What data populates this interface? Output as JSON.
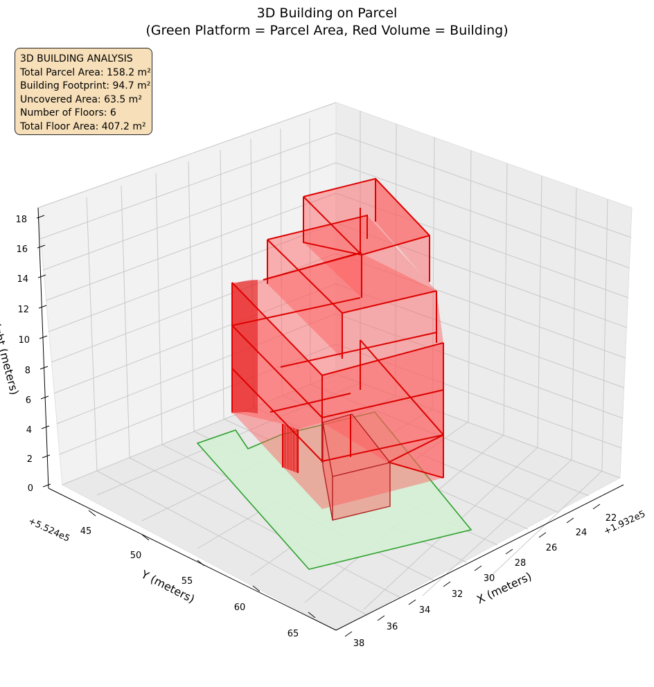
{
  "chart_data": {
    "type": "3d-polygons",
    "title_lines": [
      "3D Building on Parcel",
      "(Green Platform = Parcel Area, Red Volume = Building)"
    ],
    "axes": {
      "x": {
        "label": "X (meters)",
        "offset_text": "+1.932e5",
        "ticks": [
          "22",
          "24",
          "26",
          "28",
          "30",
          "32",
          "34",
          "36",
          "38"
        ]
      },
      "y": {
        "label": "Y (meters)",
        "offset_text": "+5.524e5",
        "ticks": [
          "45",
          "50",
          "55",
          "60",
          "65"
        ]
      },
      "z": {
        "label": "Height (meters)",
        "ticks": [
          "0",
          "2",
          "4",
          "6",
          "8",
          "10",
          "12",
          "14",
          "16",
          "18"
        ]
      }
    },
    "parcel": {
      "name": "Parcel Area",
      "color": "#2ca02c",
      "fill": "#d4f0d4",
      "height": 0
    },
    "building": {
      "name": "Building",
      "color": "#dd0000",
      "fill": "#ff5a5a",
      "floors": 6,
      "total_height": 18
    },
    "info_box": {
      "lines": [
        "3D BUILDING ANALYSIS",
        "Total Parcel Area: 158.2 m²",
        "Building Footprint: 94.7 m²",
        "Uncovered Area: 63.5 m²",
        "Number of Floors: 6",
        "Total Floor Area: 407.2 m²"
      ]
    },
    "grid": true
  }
}
